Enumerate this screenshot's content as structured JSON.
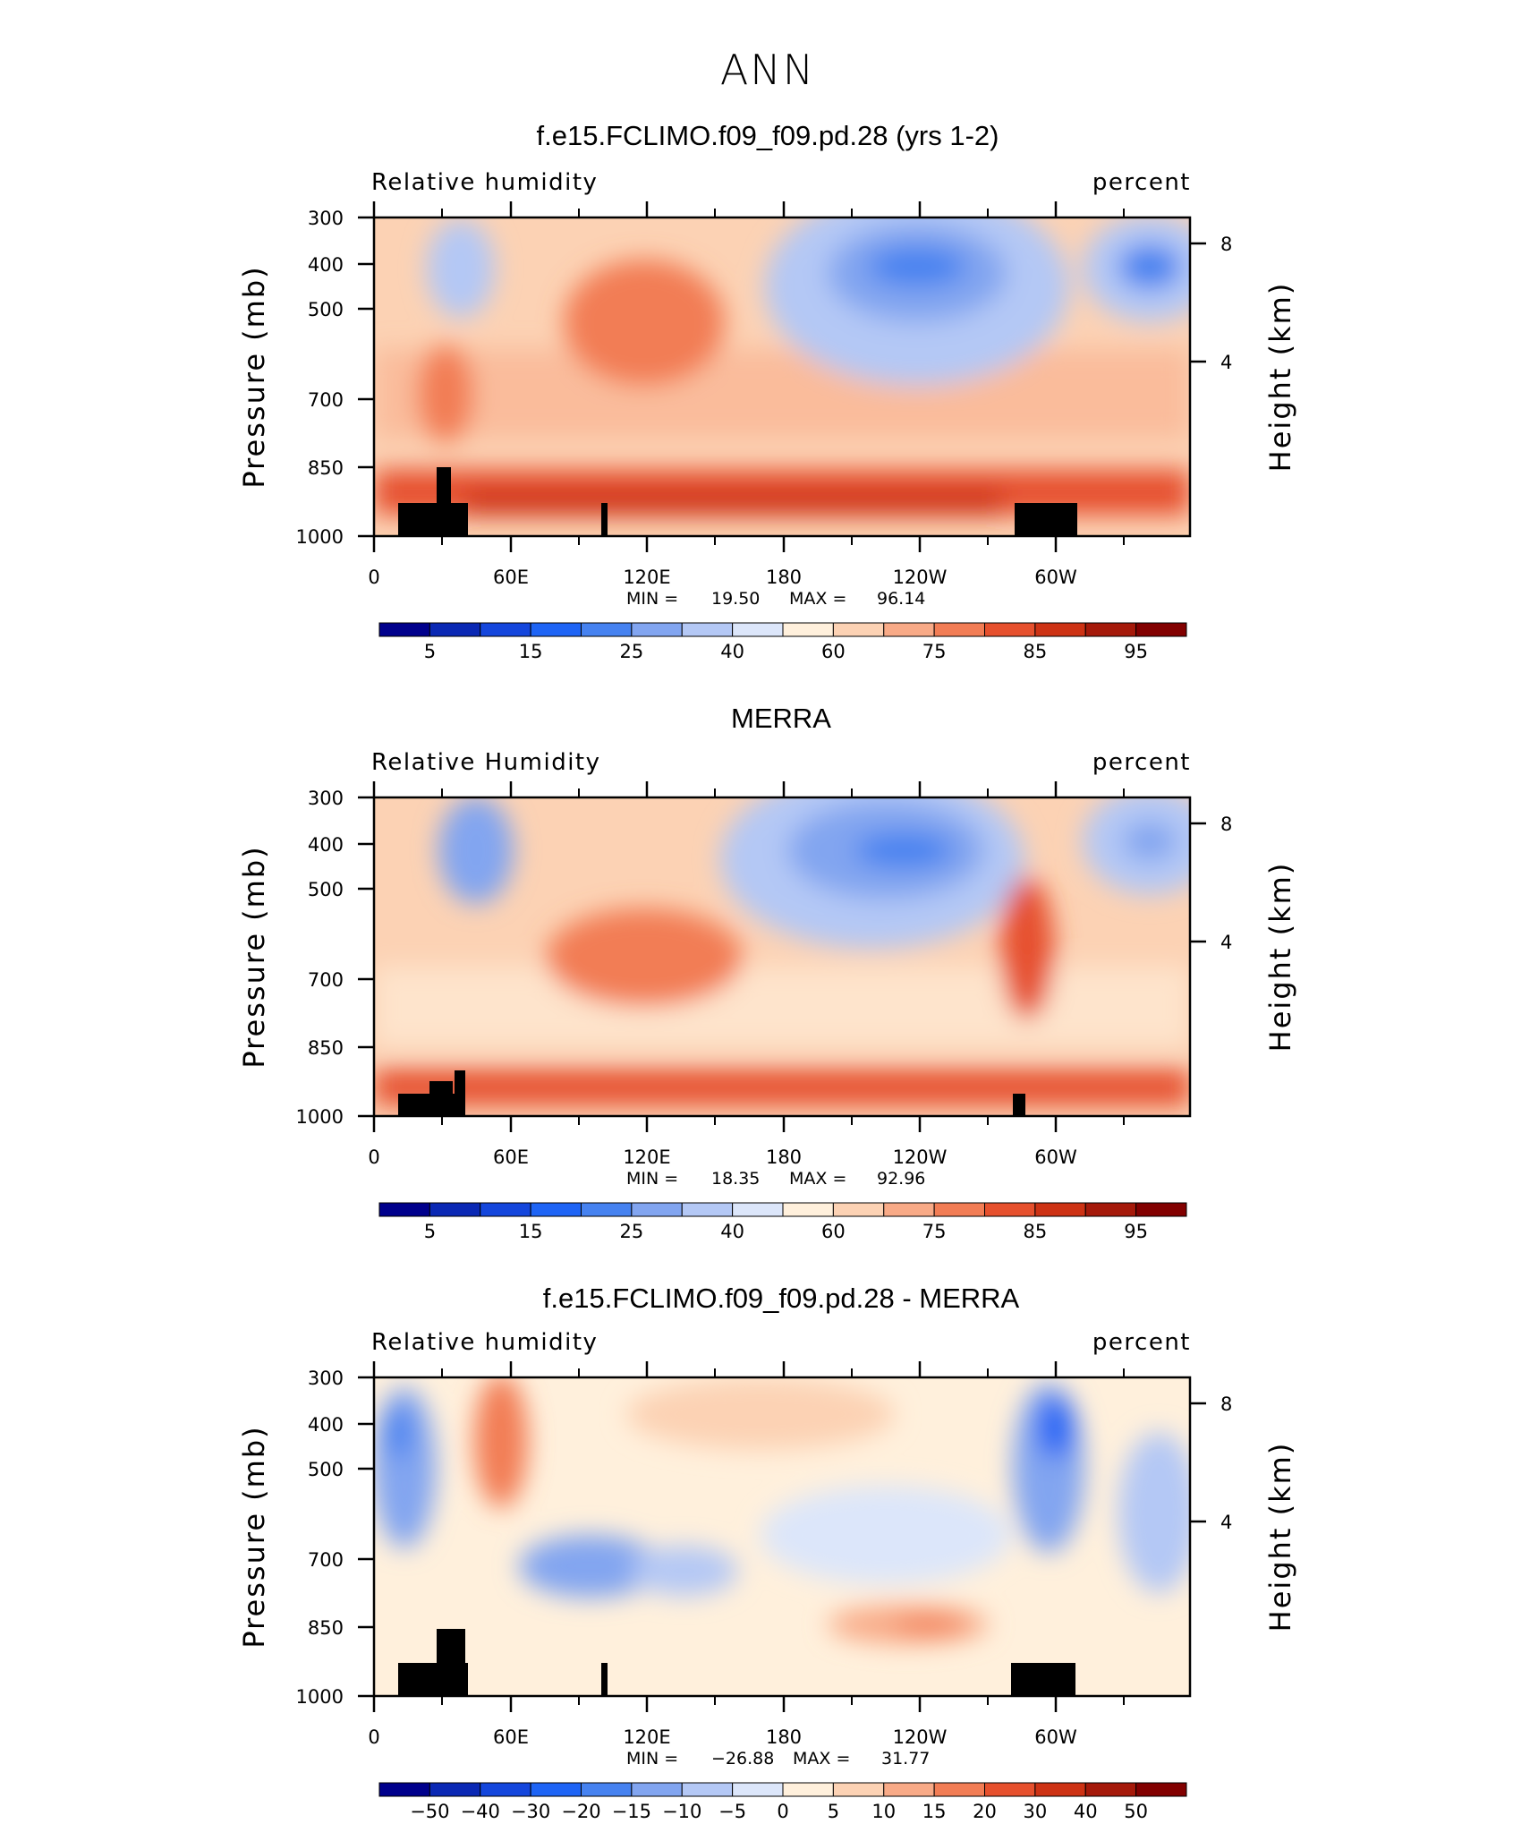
{
  "figure_title": "ANN",
  "chart_data": [
    {
      "type": "heatmap",
      "title": "f.e15.FCLIMO.f09_f09.pd.28 (yrs 1-2)",
      "left_label": "Relative humidity",
      "right_label": "percent",
      "ylabel": "Pressure (mb)",
      "y2label": "Height (km)",
      "xticks": [
        "0",
        "60E",
        "120E",
        "180",
        "120W",
        "60W"
      ],
      "yticks": [
        "300",
        "400",
        "500",
        "700",
        "850",
        "1000"
      ],
      "y2ticks": [
        "8",
        "4"
      ],
      "stats": {
        "min_label": "MIN =",
        "min": "19.50",
        "max_label": "MAX =",
        "max": "96.14"
      },
      "colorbar_labels": [
        "5",
        "15",
        "25",
        "40",
        "60",
        "75",
        "85",
        "95"
      ]
    },
    {
      "type": "heatmap",
      "title": "MERRA",
      "left_label": "Relative Humidity",
      "right_label": "percent",
      "ylabel": "Pressure (mb)",
      "y2label": "Height (km)",
      "xticks": [
        "0",
        "60E",
        "120E",
        "180",
        "120W",
        "60W"
      ],
      "yticks": [
        "300",
        "400",
        "500",
        "700",
        "850",
        "1000"
      ],
      "y2ticks": [
        "8",
        "4"
      ],
      "stats": {
        "min_label": "MIN =",
        "min": "18.35",
        "max_label": "MAX =",
        "max": "92.96"
      },
      "colorbar_labels": [
        "5",
        "15",
        "25",
        "40",
        "60",
        "75",
        "85",
        "95"
      ]
    },
    {
      "type": "heatmap",
      "title": "f.e15.FCLIMO.f09_f09.pd.28 - MERRA",
      "left_label": "Relative humidity",
      "right_label": "percent",
      "ylabel": "Pressure (mb)",
      "y2label": "Height (km)",
      "xticks": [
        "0",
        "60E",
        "120E",
        "180",
        "120W",
        "60W"
      ],
      "yticks": [
        "300",
        "400",
        "500",
        "700",
        "850",
        "1000"
      ],
      "y2ticks": [
        "8",
        "4"
      ],
      "stats": {
        "min_label": "MIN =",
        "min": "−26.88",
        "max_label": "MAX =",
        "max": "31.77"
      },
      "colorbar_labels": [
        "−50",
        "−40",
        "−30",
        "−20",
        "−15",
        "−10",
        "−5",
        "0",
        "5",
        "10",
        "15",
        "20",
        "30",
        "40",
        "50"
      ]
    }
  ],
  "colorbar_colors": [
    "#00008c",
    "#0a28b4",
    "#1446dc",
    "#1e64f5",
    "#4682f0",
    "#82a5f0",
    "#b4c8f5",
    "#dce6fa",
    "#fff0dc",
    "#fcd2b4",
    "#f8aa87",
    "#f27d55",
    "#e6502d",
    "#cd3214",
    "#a5190a",
    "#820000"
  ]
}
